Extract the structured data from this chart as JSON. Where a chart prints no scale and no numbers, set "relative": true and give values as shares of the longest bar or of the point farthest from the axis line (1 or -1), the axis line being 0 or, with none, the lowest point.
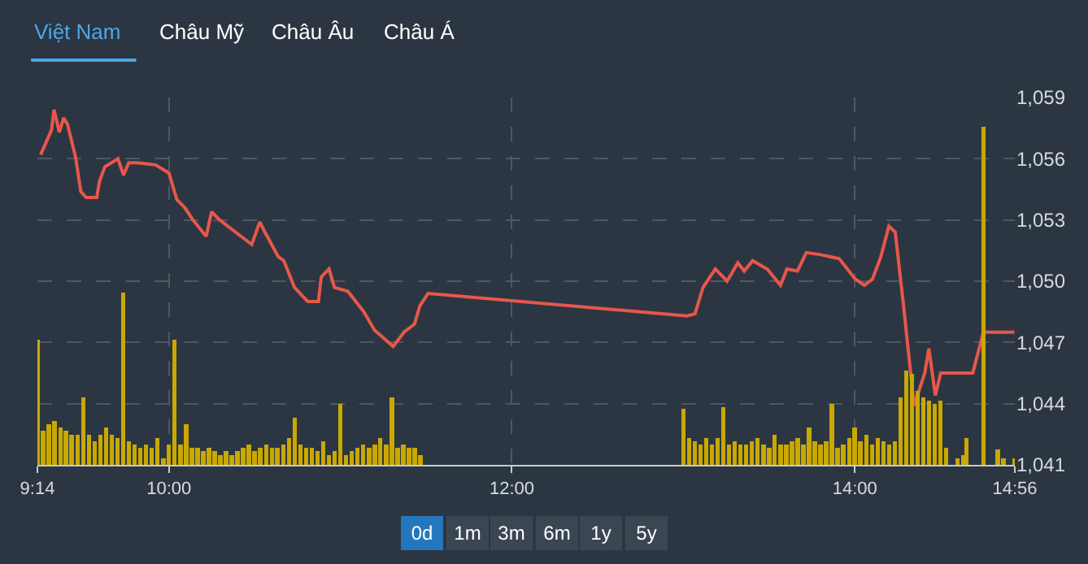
{
  "chart_data": [
    {
      "type": "line",
      "color": "#e8574a",
      "grid": true,
      "marker": "none",
      "line_style": "solid",
      "annotations": [
        "Việt Nam",
        "Châu Mỹ",
        "Châu Âu",
        "Châu Á",
        "0d",
        "1m",
        "3m",
        "6m",
        "1y",
        "5y"
      ],
      "xlim": [
        9.233,
        14.9333
      ],
      "xticks": [
        {
          "value": 9.233,
          "label": "9:14"
        },
        {
          "value": 10,
          "label": "10:00"
        },
        {
          "value": 12,
          "label": "12:00"
        },
        {
          "value": 14,
          "label": "14:00"
        },
        {
          "value": 14.9333,
          "label": "14:56"
        }
      ],
      "ylim": [
        1041,
        1059
      ],
      "yticks": [
        {
          "value": 1041,
          "label": "1,041"
        },
        {
          "value": 1044,
          "label": "1,044"
        },
        {
          "value": 1047,
          "label": "1,047"
        },
        {
          "value": 1050,
          "label": "1,050"
        },
        {
          "value": 1053,
          "label": "1,053"
        },
        {
          "value": 1056,
          "label": "1,056"
        },
        {
          "value": 1059,
          "label": "1,059"
        }
      ],
      "x": [
        9.252,
        9.315,
        9.33,
        9.361,
        9.386,
        9.408,
        9.455,
        9.486,
        9.517,
        9.579,
        9.595,
        9.626,
        9.703,
        9.735,
        9.766,
        9.813,
        9.922,
        10.0,
        10.046,
        10.093,
        10.14,
        10.217,
        10.249,
        10.296,
        10.358,
        10.483,
        10.53,
        10.56,
        10.638,
        10.67,
        10.732,
        10.81,
        10.872,
        10.888,
        10.934,
        10.965,
        11.044,
        11.137,
        11.199,
        11.308,
        11.371,
        11.432,
        11.464,
        11.511,
        13.021,
        13.068,
        13.115,
        13.187,
        13.255,
        13.318,
        13.355,
        13.404,
        13.489,
        13.567,
        13.604,
        13.666,
        13.717,
        13.801,
        13.909,
        14.003,
        14.056,
        14.103,
        14.152,
        14.199,
        14.236,
        14.283,
        14.346,
        14.408,
        14.432,
        14.47,
        14.501,
        14.688,
        14.75,
        14.931
      ],
      "values": [
        1056.2,
        1057.4,
        1058.4,
        1057.3,
        1058.0,
        1057.7,
        1056.1,
        1054.4,
        1054.1,
        1054.1,
        1054.9,
        1055.6,
        1056.0,
        1055.2,
        1055.8,
        1055.8,
        1055.7,
        1055.3,
        1054.0,
        1053.6,
        1053.0,
        1052.2,
        1053.4,
        1053.0,
        1052.6,
        1051.8,
        1052.9,
        1052.4,
        1051.2,
        1051.0,
        1049.7,
        1049.0,
        1049.0,
        1050.2,
        1050.6,
        1049.7,
        1049.5,
        1048.5,
        1047.6,
        1046.8,
        1047.5,
        1047.9,
        1048.8,
        1049.4,
        1048.3,
        1048.4,
        1049.7,
        1050.6,
        1050.0,
        1050.9,
        1050.5,
        1051.0,
        1050.6,
        1049.8,
        1050.6,
        1050.5,
        1051.4,
        1051.3,
        1051.1,
        1050.1,
        1049.8,
        1050.1,
        1051.2,
        1052.7,
        1052.4,
        1048.9,
        1043.9,
        1045.5,
        1046.7,
        1044.4,
        1045.5,
        1045.5,
        1047.5,
        1047.5
      ]
    },
    {
      "type": "bar",
      "relative": true,
      "color": "#c9a800",
      "tick_labels": false,
      "xlim": [
        9.233,
        14.9333
      ],
      "x": [
        9.233,
        9.267,
        9.3,
        9.333,
        9.367,
        9.4,
        9.433,
        9.467,
        9.5,
        9.533,
        9.567,
        9.6,
        9.633,
        9.667,
        9.7,
        9.733,
        9.767,
        9.8,
        9.833,
        9.867,
        9.9,
        9.933,
        9.967,
        10.0,
        10.033,
        10.067,
        10.1,
        10.133,
        10.167,
        10.2,
        10.233,
        10.267,
        10.3,
        10.333,
        10.367,
        10.4,
        10.433,
        10.467,
        10.5,
        10.533,
        10.567,
        10.6,
        10.633,
        10.667,
        10.7,
        10.733,
        10.767,
        10.8,
        10.833,
        10.867,
        10.9,
        10.933,
        10.967,
        11.0,
        11.033,
        11.067,
        11.1,
        11.133,
        11.167,
        11.2,
        11.233,
        11.267,
        11.3,
        11.333,
        11.367,
        11.4,
        11.433,
        11.467,
        13.0,
        13.033,
        13.067,
        13.1,
        13.133,
        13.167,
        13.2,
        13.233,
        13.267,
        13.3,
        13.333,
        13.367,
        13.4,
        13.433,
        13.467,
        13.5,
        13.533,
        13.567,
        13.6,
        13.633,
        13.667,
        13.7,
        13.733,
        13.767,
        13.8,
        13.833,
        13.867,
        13.9,
        13.933,
        13.967,
        14.0,
        14.033,
        14.067,
        14.1,
        14.133,
        14.167,
        14.2,
        14.233,
        14.267,
        14.3,
        14.333,
        14.367,
        14.4,
        14.433,
        14.467,
        14.5,
        14.533,
        14.6,
        14.633,
        14.65,
        14.75,
        14.833,
        14.867,
        14.933
      ],
      "values": [
        0.37,
        0.1,
        0.12,
        0.13,
        0.11,
        0.1,
        0.09,
        0.09,
        0.2,
        0.09,
        0.07,
        0.09,
        0.11,
        0.09,
        0.08,
        0.51,
        0.07,
        0.06,
        0.05,
        0.06,
        0.05,
        0.08,
        0.02,
        0.06,
        0.37,
        0.06,
        0.12,
        0.05,
        0.05,
        0.04,
        0.05,
        0.04,
        0.03,
        0.04,
        0.03,
        0.04,
        0.05,
        0.06,
        0.04,
        0.05,
        0.06,
        0.05,
        0.05,
        0.06,
        0.08,
        0.14,
        0.06,
        0.05,
        0.05,
        0.04,
        0.07,
        0.03,
        0.04,
        0.18,
        0.03,
        0.04,
        0.05,
        0.06,
        0.05,
        0.06,
        0.08,
        0.06,
        0.2,
        0.05,
        0.06,
        0.05,
        0.05,
        0.03,
        0.165,
        0.08,
        0.07,
        0.06,
        0.08,
        0.06,
        0.08,
        0.17,
        0.06,
        0.07,
        0.06,
        0.06,
        0.07,
        0.08,
        0.06,
        0.05,
        0.09,
        0.06,
        0.06,
        0.07,
        0.08,
        0.06,
        0.11,
        0.07,
        0.06,
        0.07,
        0.18,
        0.05,
        0.06,
        0.08,
        0.11,
        0.07,
        0.09,
        0.06,
        0.08,
        0.07,
        0.06,
        0.07,
        0.2,
        0.28,
        0.27,
        0.22,
        0.2,
        0.19,
        0.18,
        0.19,
        0.05,
        0.02,
        0.03,
        0.08,
        1.0,
        0.045,
        0.02,
        0.02
      ]
    }
  ]
}
